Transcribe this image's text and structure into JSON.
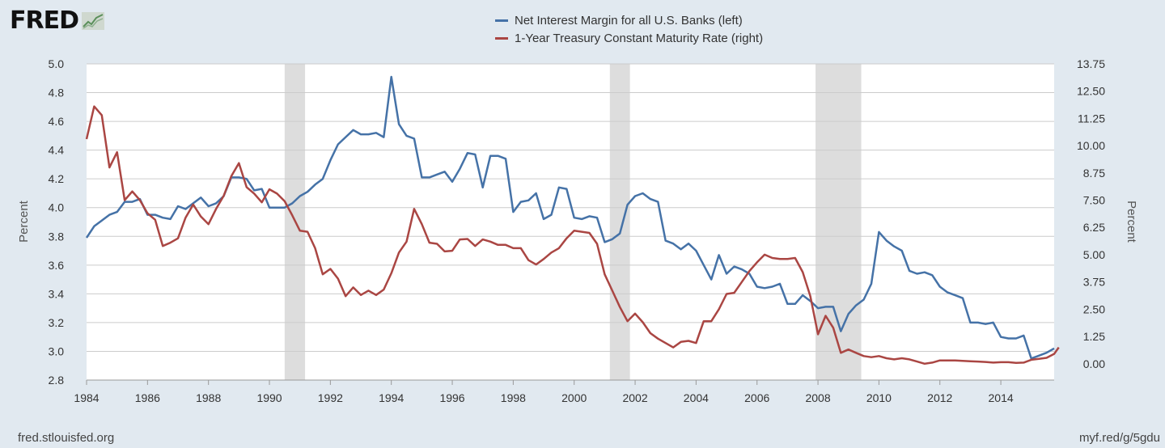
{
  "logo": {
    "text": "FRED",
    "mark": "trend-line-icon"
  },
  "footer": {
    "source": "fred.stlouisfed.org",
    "short_url": "myf.red/g/5gdu"
  },
  "colors": {
    "series_left": "#4572a7",
    "series_right": "#aa4643",
    "recession": "#dddddd",
    "grid": "#cccccc",
    "plot_bg": "#ffffff",
    "page_bg": "#e1e9f0"
  },
  "chart_data": {
    "type": "line",
    "title": "",
    "xlabel": "",
    "ylabel_left": "Percent",
    "ylabel_right": "Percent",
    "xlim": [
      1984.0,
      2015.75
    ],
    "ylim_left": [
      2.8,
      5.0
    ],
    "ylim_right": [
      -0.75,
      13.75
    ],
    "x_ticks": [
      "1984",
      "1986",
      "1988",
      "1990",
      "1992",
      "1994",
      "1996",
      "1998",
      "2000",
      "2002",
      "2004",
      "2006",
      "2008",
      "2010",
      "2012",
      "2014"
    ],
    "y_ticks_left": [
      "2.8",
      "3.0",
      "3.2",
      "3.4",
      "3.6",
      "3.8",
      "4.0",
      "4.2",
      "4.4",
      "4.6",
      "4.8",
      "5.0"
    ],
    "y_ticks_right": [
      "0.00",
      "1.25",
      "2.50",
      "3.75",
      "5.00",
      "6.25",
      "7.50",
      "8.75",
      "10.00",
      "11.25",
      "12.50",
      "13.75"
    ],
    "grid": true,
    "legend_position": "top-center",
    "recessions": [
      [
        1990.5,
        1991.17
      ],
      [
        2001.17,
        2001.83
      ],
      [
        2007.92,
        2009.42
      ]
    ],
    "series": [
      {
        "name": "Net Interest Margin for all U.S. Banks (left)",
        "axis": "left",
        "points": [
          [
            1984.0,
            3.79
          ],
          [
            1984.25,
            3.87
          ],
          [
            1984.5,
            3.91
          ],
          [
            1984.75,
            3.95
          ],
          [
            1985.0,
            3.97
          ],
          [
            1985.25,
            4.04
          ],
          [
            1985.5,
            4.04
          ],
          [
            1985.75,
            4.06
          ],
          [
            1986.0,
            3.95
          ],
          [
            1986.25,
            3.95
          ],
          [
            1986.5,
            3.93
          ],
          [
            1986.75,
            3.92
          ],
          [
            1987.0,
            4.01
          ],
          [
            1987.25,
            3.99
          ],
          [
            1987.5,
            4.03
          ],
          [
            1987.75,
            4.07
          ],
          [
            1988.0,
            4.01
          ],
          [
            1988.25,
            4.03
          ],
          [
            1988.5,
            4.08
          ],
          [
            1988.75,
            4.21
          ],
          [
            1989.0,
            4.21
          ],
          [
            1989.25,
            4.2
          ],
          [
            1989.5,
            4.12
          ],
          [
            1989.75,
            4.13
          ],
          [
            1990.0,
            4.0
          ],
          [
            1990.25,
            4.0
          ],
          [
            1990.5,
            4.0
          ],
          [
            1990.75,
            4.03
          ],
          [
            1991.0,
            4.08
          ],
          [
            1991.25,
            4.11
          ],
          [
            1991.5,
            4.16
          ],
          [
            1991.75,
            4.2
          ],
          [
            1992.0,
            4.33
          ],
          [
            1992.25,
            4.44
          ],
          [
            1992.5,
            4.49
          ],
          [
            1992.75,
            4.54
          ],
          [
            1993.0,
            4.51
          ],
          [
            1993.25,
            4.51
          ],
          [
            1993.5,
            4.52
          ],
          [
            1993.75,
            4.49
          ],
          [
            1994.0,
            4.91
          ],
          [
            1994.25,
            4.58
          ],
          [
            1994.5,
            4.5
          ],
          [
            1994.75,
            4.48
          ],
          [
            1995.0,
            4.21
          ],
          [
            1995.25,
            4.21
          ],
          [
            1995.5,
            4.23
          ],
          [
            1995.75,
            4.25
          ],
          [
            1996.0,
            4.18
          ],
          [
            1996.25,
            4.27
          ],
          [
            1996.5,
            4.38
          ],
          [
            1996.75,
            4.37
          ],
          [
            1997.0,
            4.14
          ],
          [
            1997.25,
            4.36
          ],
          [
            1997.5,
            4.36
          ],
          [
            1997.75,
            4.34
          ],
          [
            1998.0,
            3.97
          ],
          [
            1998.25,
            4.04
          ],
          [
            1998.5,
            4.05
          ],
          [
            1998.75,
            4.1
          ],
          [
            1999.0,
            3.92
          ],
          [
            1999.25,
            3.95
          ],
          [
            1999.5,
            4.14
          ],
          [
            1999.75,
            4.13
          ],
          [
            2000.0,
            3.93
          ],
          [
            2000.25,
            3.92
          ],
          [
            2000.5,
            3.94
          ],
          [
            2000.75,
            3.93
          ],
          [
            2001.0,
            3.76
          ],
          [
            2001.25,
            3.78
          ],
          [
            2001.5,
            3.82
          ],
          [
            2001.75,
            4.02
          ],
          [
            2002.0,
            4.08
          ],
          [
            2002.25,
            4.1
          ],
          [
            2002.5,
            4.06
          ],
          [
            2002.75,
            4.04
          ],
          [
            2003.0,
            3.77
          ],
          [
            2003.25,
            3.75
          ],
          [
            2003.5,
            3.71
          ],
          [
            2003.75,
            3.75
          ],
          [
            2004.0,
            3.7
          ],
          [
            2004.25,
            3.6
          ],
          [
            2004.5,
            3.5
          ],
          [
            2004.75,
            3.67
          ],
          [
            2005.0,
            3.54
          ],
          [
            2005.25,
            3.59
          ],
          [
            2005.5,
            3.57
          ],
          [
            2005.75,
            3.54
          ],
          [
            2006.0,
            3.45
          ],
          [
            2006.25,
            3.44
          ],
          [
            2006.5,
            3.45
          ],
          [
            2006.75,
            3.47
          ],
          [
            2007.0,
            3.33
          ],
          [
            2007.25,
            3.33
          ],
          [
            2007.5,
            3.39
          ],
          [
            2007.75,
            3.35
          ],
          [
            2008.0,
            3.3
          ],
          [
            2008.25,
            3.31
          ],
          [
            2008.5,
            3.31
          ],
          [
            2008.75,
            3.14
          ],
          [
            2009.0,
            3.26
          ],
          [
            2009.25,
            3.32
          ],
          [
            2009.5,
            3.36
          ],
          [
            2009.75,
            3.47
          ],
          [
            2010.0,
            3.83
          ],
          [
            2010.25,
            3.77
          ],
          [
            2010.5,
            3.73
          ],
          [
            2010.75,
            3.7
          ],
          [
            2011.0,
            3.56
          ],
          [
            2011.25,
            3.54
          ],
          [
            2011.5,
            3.55
          ],
          [
            2011.75,
            3.53
          ],
          [
            2012.0,
            3.45
          ],
          [
            2012.25,
            3.41
          ],
          [
            2012.5,
            3.39
          ],
          [
            2012.75,
            3.37
          ],
          [
            2013.0,
            3.2
          ],
          [
            2013.25,
            3.2
          ],
          [
            2013.5,
            3.19
          ],
          [
            2013.75,
            3.2
          ],
          [
            2014.0,
            3.1
          ],
          [
            2014.25,
            3.09
          ],
          [
            2014.5,
            3.09
          ],
          [
            2014.75,
            3.11
          ],
          [
            2015.0,
            2.95
          ],
          [
            2015.25,
            2.97
          ],
          [
            2015.5,
            2.99
          ],
          [
            2015.75,
            3.02
          ]
        ]
      },
      {
        "name": "1-Year Treasury Constant Maturity Rate (right)",
        "axis": "right",
        "points": [
          [
            1984.0,
            10.3
          ],
          [
            1984.25,
            11.8
          ],
          [
            1984.5,
            11.4
          ],
          [
            1984.75,
            9.0
          ],
          [
            1985.0,
            9.7
          ],
          [
            1985.25,
            7.5
          ],
          [
            1985.5,
            7.9
          ],
          [
            1985.75,
            7.5
          ],
          [
            1986.0,
            6.9
          ],
          [
            1986.25,
            6.6
          ],
          [
            1986.5,
            5.4
          ],
          [
            1986.75,
            5.55
          ],
          [
            1987.0,
            5.75
          ],
          [
            1987.25,
            6.7
          ],
          [
            1987.5,
            7.3
          ],
          [
            1987.75,
            6.75
          ],
          [
            1988.0,
            6.4
          ],
          [
            1988.25,
            7.1
          ],
          [
            1988.5,
            7.7
          ],
          [
            1988.75,
            8.6
          ],
          [
            1989.0,
            9.2
          ],
          [
            1989.25,
            8.1
          ],
          [
            1989.5,
            7.8
          ],
          [
            1989.75,
            7.4
          ],
          [
            1990.0,
            8.0
          ],
          [
            1990.25,
            7.8
          ],
          [
            1990.5,
            7.45
          ],
          [
            1990.75,
            6.8
          ],
          [
            1991.0,
            6.1
          ],
          [
            1991.25,
            6.05
          ],
          [
            1991.5,
            5.3
          ],
          [
            1991.75,
            4.1
          ],
          [
            1992.0,
            4.35
          ],
          [
            1992.25,
            3.9
          ],
          [
            1992.5,
            3.1
          ],
          [
            1992.75,
            3.5
          ],
          [
            1993.0,
            3.15
          ],
          [
            1993.25,
            3.35
          ],
          [
            1993.5,
            3.15
          ],
          [
            1993.75,
            3.4
          ],
          [
            1994.0,
            4.15
          ],
          [
            1994.25,
            5.1
          ],
          [
            1994.5,
            5.6
          ],
          [
            1994.75,
            7.1
          ],
          [
            1995.0,
            6.4
          ],
          [
            1995.25,
            5.55
          ],
          [
            1995.5,
            5.5
          ],
          [
            1995.75,
            5.15
          ],
          [
            1996.0,
            5.18
          ],
          [
            1996.25,
            5.7
          ],
          [
            1996.5,
            5.72
          ],
          [
            1996.75,
            5.4
          ],
          [
            1997.0,
            5.7
          ],
          [
            1997.25,
            5.6
          ],
          [
            1997.5,
            5.45
          ],
          [
            1997.75,
            5.45
          ],
          [
            1998.0,
            5.3
          ],
          [
            1998.25,
            5.3
          ],
          [
            1998.5,
            4.75
          ],
          [
            1998.75,
            4.55
          ],
          [
            1999.0,
            4.8
          ],
          [
            1999.25,
            5.1
          ],
          [
            1999.5,
            5.3
          ],
          [
            1999.75,
            5.75
          ],
          [
            2000.0,
            6.1
          ],
          [
            2000.25,
            6.05
          ],
          [
            2000.5,
            6.0
          ],
          [
            2000.75,
            5.5
          ],
          [
            2001.0,
            4.1
          ],
          [
            2001.25,
            3.35
          ],
          [
            2001.5,
            2.6
          ],
          [
            2001.75,
            1.95
          ],
          [
            2002.0,
            2.3
          ],
          [
            2002.25,
            1.9
          ],
          [
            2002.5,
            1.4
          ],
          [
            2002.75,
            1.15
          ],
          [
            2003.0,
            0.95
          ],
          [
            2003.25,
            0.75
          ],
          [
            2003.5,
            1.0
          ],
          [
            2003.75,
            1.05
          ],
          [
            2004.0,
            0.95
          ],
          [
            2004.25,
            1.95
          ],
          [
            2004.5,
            1.95
          ],
          [
            2004.75,
            2.5
          ],
          [
            2005.0,
            3.2
          ],
          [
            2005.25,
            3.25
          ],
          [
            2005.5,
            3.75
          ],
          [
            2005.75,
            4.25
          ],
          [
            2006.0,
            4.65
          ],
          [
            2006.25,
            5.0
          ],
          [
            2006.5,
            4.85
          ],
          [
            2006.75,
            4.8
          ],
          [
            2007.0,
            4.8
          ],
          [
            2007.25,
            4.85
          ],
          [
            2007.5,
            4.2
          ],
          [
            2007.75,
            3.1
          ],
          [
            2008.0,
            1.35
          ],
          [
            2008.25,
            2.2
          ],
          [
            2008.5,
            1.65
          ],
          [
            2008.75,
            0.5
          ],
          [
            2009.0,
            0.65
          ],
          [
            2009.25,
            0.5
          ],
          [
            2009.5,
            0.35
          ],
          [
            2009.75,
            0.3
          ],
          [
            2010.0,
            0.35
          ],
          [
            2010.25,
            0.25
          ],
          [
            2010.5,
            0.2
          ],
          [
            2010.75,
            0.25
          ],
          [
            2011.0,
            0.2
          ],
          [
            2011.25,
            0.1
          ],
          [
            2011.5,
            0.0
          ],
          [
            2011.75,
            0.05
          ],
          [
            2012.0,
            0.15
          ],
          [
            2012.25,
            0.15
          ],
          [
            2012.5,
            0.15
          ],
          [
            2012.75,
            0.13
          ],
          [
            2013.0,
            0.11
          ],
          [
            2013.25,
            0.1
          ],
          [
            2013.5,
            0.08
          ],
          [
            2013.75,
            0.05
          ],
          [
            2014.0,
            0.07
          ],
          [
            2014.25,
            0.07
          ],
          [
            2014.5,
            0.04
          ],
          [
            2014.75,
            0.05
          ],
          [
            2015.0,
            0.18
          ],
          [
            2015.25,
            0.22
          ],
          [
            2015.5,
            0.27
          ],
          [
            2015.75,
            0.45
          ],
          [
            2015.9,
            0.75
          ]
        ]
      }
    ]
  }
}
